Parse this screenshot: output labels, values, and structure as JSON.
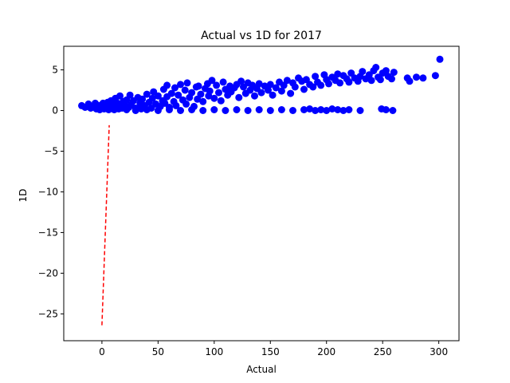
{
  "chart_data": {
    "type": "scatter",
    "title": "Actual vs 1D for 2017",
    "xlabel": "Actual",
    "ylabel": "1D",
    "xlim": [
      -34,
      318
    ],
    "ylim": [
      -28.3,
      7.9
    ],
    "xticks": [
      0,
      50,
      100,
      150,
      200,
      250,
      300
    ],
    "yticks": [
      5,
      0,
      -5,
      -10,
      -15,
      -20,
      -25
    ],
    "xtick_labels": [
      "0",
      "50",
      "100",
      "150",
      "200",
      "250",
      "300"
    ],
    "ytick_labels": [
      "5",
      "0",
      "−5",
      "−10",
      "−15",
      "−20",
      "−25"
    ],
    "grid": false,
    "colors": {
      "points": "#0000ff",
      "fit_line": "#ff0000"
    },
    "fit_line": {
      "style": "dashed",
      "x": [
        0,
        6.5
      ],
      "y": [
        -26.4,
        -1.8
      ]
    },
    "series": [
      {
        "points": [
          [
            -18,
            0.6
          ],
          [
            -15,
            0.4
          ],
          [
            -12,
            0.8
          ],
          [
            -10,
            0.3
          ],
          [
            -8,
            0.5
          ],
          [
            -6,
            0.9
          ],
          [
            -5,
            0.2
          ],
          [
            -3,
            0.6
          ],
          [
            -2,
            0.1
          ],
          [
            0,
            0.4
          ],
          [
            1,
            0.9
          ],
          [
            2,
            0.2
          ],
          [
            3,
            0.6
          ],
          [
            4,
            0.3
          ],
          [
            5,
            1.0
          ],
          [
            6,
            0.1
          ],
          [
            7,
            0.5
          ],
          [
            8,
            1.2
          ],
          [
            9,
            0.3
          ],
          [
            10,
            0.7
          ],
          [
            11,
            0.1
          ],
          [
            12,
            1.5
          ],
          [
            13,
            0.4
          ],
          [
            14,
            0.9
          ],
          [
            15,
            0.2
          ],
          [
            16,
            1.8
          ],
          [
            17,
            0.6
          ],
          [
            18,
            0.3
          ],
          [
            19,
            1.1
          ],
          [
            20,
            0.8
          ],
          [
            22,
            1.3
          ],
          [
            24,
            0.4
          ],
          [
            25,
            1.9
          ],
          [
            26,
            0.7
          ],
          [
            28,
            1.2
          ],
          [
            30,
            0.3
          ],
          [
            32,
            1.6
          ],
          [
            34,
            0.9
          ],
          [
            35,
            0.2
          ],
          [
            36,
            1.4
          ],
          [
            38,
            0.6
          ],
          [
            40,
            2.0
          ],
          [
            42,
            1.0
          ],
          [
            44,
            0.3
          ],
          [
            45,
            1.5
          ],
          [
            46,
            2.3
          ],
          [
            48,
            0.8
          ],
          [
            50,
            1.8
          ],
          [
            52,
            0.5
          ],
          [
            54,
            1.2
          ],
          [
            55,
            2.6
          ],
          [
            56,
            0.9
          ],
          [
            58,
            1.7
          ],
          [
            58,
            3.1
          ],
          [
            60,
            0.4
          ],
          [
            62,
            2.1
          ],
          [
            64,
            1.1
          ],
          [
            65,
            2.8
          ],
          [
            66,
            0.6
          ],
          [
            68,
            1.9
          ],
          [
            70,
            3.2
          ],
          [
            72,
            1.3
          ],
          [
            74,
            2.5
          ],
          [
            75,
            0.8
          ],
          [
            76,
            3.4
          ],
          [
            78,
            1.6
          ],
          [
            80,
            2.2
          ],
          [
            82,
            0.5
          ],
          [
            84,
            2.9
          ],
          [
            85,
            1.4
          ],
          [
            86,
            3.0
          ],
          [
            88,
            2.0
          ],
          [
            90,
            1.1
          ],
          [
            92,
            2.7
          ],
          [
            94,
            3.3
          ],
          [
            95,
            1.8
          ],
          [
            96,
            2.4
          ],
          [
            98,
            3.7
          ],
          [
            100,
            1.5
          ],
          [
            102,
            3.1
          ],
          [
            104,
            2.2
          ],
          [
            106,
            1.2
          ],
          [
            108,
            3.5
          ],
          [
            110,
            2.6
          ],
          [
            112,
            1.9
          ],
          [
            114,
            3.0
          ],
          [
            115,
            2.3
          ],
          [
            118,
            2.8
          ],
          [
            120,
            3.2
          ],
          [
            122,
            1.6
          ],
          [
            124,
            3.6
          ],
          [
            126,
            2.9
          ],
          [
            128,
            2.1
          ],
          [
            130,
            3.4
          ],
          [
            132,
            2.5
          ],
          [
            134,
            3.1
          ],
          [
            136,
            1.8
          ],
          [
            138,
            2.7
          ],
          [
            140,
            3.3
          ],
          [
            142,
            2.2
          ],
          [
            145,
            3.0
          ],
          [
            148,
            2.5
          ],
          [
            150,
            3.2
          ],
          [
            152,
            1.9
          ],
          [
            155,
            2.8
          ],
          [
            158,
            3.5
          ],
          [
            160,
            2.4
          ],
          [
            162,
            3.1
          ],
          [
            165,
            3.7
          ],
          [
            168,
            2.1
          ],
          [
            170,
            3.4
          ],
          [
            172,
            2.9
          ],
          [
            175,
            4.0
          ],
          [
            178,
            3.6
          ],
          [
            180,
            2.6
          ],
          [
            182,
            3.8
          ],
          [
            185,
            3.2
          ],
          [
            188,
            2.9
          ],
          [
            190,
            4.2
          ],
          [
            192,
            3.5
          ],
          [
            195,
            3.1
          ],
          [
            198,
            4.4
          ],
          [
            200,
            3.8
          ],
          [
            202,
            3.3
          ],
          [
            205,
            4.1
          ],
          [
            208,
            3.7
          ],
          [
            210,
            4.5
          ],
          [
            212,
            3.4
          ],
          [
            215,
            4.3
          ],
          [
            218,
            3.9
          ],
          [
            220,
            3.5
          ],
          [
            222,
            4.6
          ],
          [
            225,
            4.0
          ],
          [
            228,
            3.6
          ],
          [
            230,
            4.2
          ],
          [
            232,
            4.8
          ],
          [
            235,
            3.9
          ],
          [
            238,
            4.4
          ],
          [
            240,
            3.7
          ],
          [
            242,
            4.9
          ],
          [
            244,
            5.3
          ],
          [
            246,
            4.1
          ],
          [
            248,
            3.8
          ],
          [
            250,
            4.6
          ],
          [
            253,
            4.9
          ],
          [
            255,
            4.2
          ],
          [
            258,
            3.9
          ],
          [
            260,
            4.7
          ],
          [
            272,
            4.0
          ],
          [
            274,
            3.6
          ],
          [
            280,
            4.1
          ],
          [
            286,
            4.0
          ],
          [
            297,
            4.3
          ],
          [
            301,
            6.3
          ],
          [
            22,
            0.1
          ],
          [
            30,
            0.0
          ],
          [
            40,
            0.1
          ],
          [
            50,
            0.0
          ],
          [
            60,
            0.1
          ],
          [
            70,
            0.0
          ],
          [
            80,
            0.1
          ],
          [
            90,
            0.0
          ],
          [
            100,
            0.1
          ],
          [
            110,
            0.0
          ],
          [
            120,
            0.1
          ],
          [
            130,
            0.0
          ],
          [
            140,
            0.1
          ],
          [
            150,
            0.0
          ],
          [
            160,
            0.1
          ],
          [
            170,
            0.0
          ],
          [
            180,
            0.1
          ],
          [
            185,
            0.2
          ],
          [
            190,
            0.0
          ],
          [
            195,
            0.1
          ],
          [
            200,
            0.0
          ],
          [
            205,
            0.2
          ],
          [
            210,
            0.1
          ],
          [
            215,
            0.0
          ],
          [
            220,
            0.1
          ],
          [
            230,
            0.0
          ],
          [
            249,
            0.2
          ],
          [
            253,
            0.1
          ],
          [
            259,
            0.0
          ]
        ]
      }
    ]
  }
}
